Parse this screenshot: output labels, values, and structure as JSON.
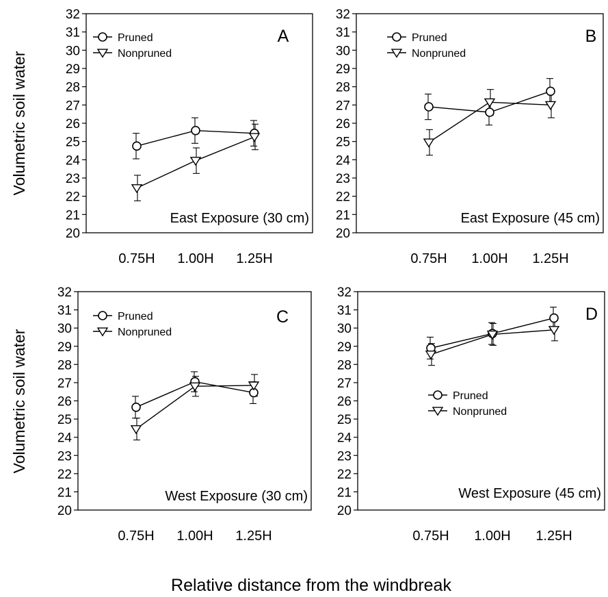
{
  "figure": {
    "y_axis_label": "Volumetric soil water",
    "x_axis_label": "Relative distance from the windbreak"
  },
  "chart_data": [
    {
      "type": "line",
      "panel_label": "A",
      "annotation": "East Exposure (30 cm)",
      "categories": [
        "0.75H",
        "1.00H",
        "1.25H"
      ],
      "ylim": [
        20,
        32
      ],
      "yticks": [
        "20",
        "21",
        "22",
        "23",
        "24",
        "25",
        "26",
        "27",
        "28",
        "29",
        "30",
        "31",
        "32"
      ],
      "legend_position": "top-left",
      "grid": false,
      "series": [
        {
          "name": "Pruned",
          "marker": "circle",
          "values": [
            24.75,
            25.6,
            25.45
          ],
          "errors": [
            0.7,
            0.7,
            0.7
          ]
        },
        {
          "name": "Nonpruned",
          "marker": "triangle-down",
          "values": [
            22.45,
            23.95,
            25.25
          ],
          "errors": [
            0.7,
            0.7,
            0.7
          ]
        }
      ]
    },
    {
      "type": "line",
      "panel_label": "B",
      "annotation": "East Exposure (45 cm)",
      "categories": [
        "0.75H",
        "1.00H",
        "1.25H"
      ],
      "ylim": [
        20,
        32
      ],
      "yticks": [
        "20",
        "21",
        "22",
        "23",
        "24",
        "25",
        "26",
        "27",
        "28",
        "29",
        "30",
        "31",
        "32"
      ],
      "legend_position": "top-left",
      "grid": false,
      "series": [
        {
          "name": "Pruned",
          "marker": "circle",
          "values": [
            26.9,
            26.6,
            27.75
          ],
          "errors": [
            0.7,
            0.7,
            0.7
          ]
        },
        {
          "name": "Nonpruned",
          "marker": "triangle-down",
          "values": [
            24.95,
            27.15,
            27.0
          ],
          "errors": [
            0.7,
            0.7,
            0.7
          ]
        }
      ]
    },
    {
      "type": "line",
      "panel_label": "C",
      "annotation": "West Exposure (30 cm)",
      "categories": [
        "0.75H",
        "1.00H",
        "1.25H"
      ],
      "ylim": [
        20,
        32
      ],
      "yticks": [
        "20",
        "21",
        "22",
        "23",
        "24",
        "25",
        "26",
        "27",
        "28",
        "29",
        "30",
        "31",
        "32"
      ],
      "legend_position": "top-left",
      "grid": false,
      "series": [
        {
          "name": "Pruned",
          "marker": "circle",
          "values": [
            25.65,
            27.05,
            26.45
          ],
          "errors": [
            0.6,
            0.55,
            0.6
          ]
        },
        {
          "name": "Nonpruned",
          "marker": "triangle-down",
          "values": [
            24.45,
            26.8,
            26.85
          ],
          "errors": [
            0.6,
            0.55,
            0.6
          ]
        }
      ]
    },
    {
      "type": "line",
      "panel_label": "D",
      "annotation": "West Exposure (45 cm)",
      "categories": [
        "0.75H",
        "1.00H",
        "1.25H"
      ],
      "ylim": [
        20,
        32
      ],
      "yticks": [
        "20",
        "21",
        "22",
        "23",
        "24",
        "25",
        "26",
        "27",
        "28",
        "29",
        "30",
        "31",
        "32"
      ],
      "legend_position": "center-left",
      "grid": false,
      "series": [
        {
          "name": "Pruned",
          "marker": "circle",
          "values": [
            28.9,
            29.7,
            30.55
          ],
          "errors": [
            0.6,
            0.6,
            0.6
          ]
        },
        {
          "name": "Nonpruned",
          "marker": "triangle-down",
          "values": [
            28.55,
            29.65,
            29.9
          ],
          "errors": [
            0.6,
            0.6,
            0.6
          ]
        }
      ]
    }
  ]
}
